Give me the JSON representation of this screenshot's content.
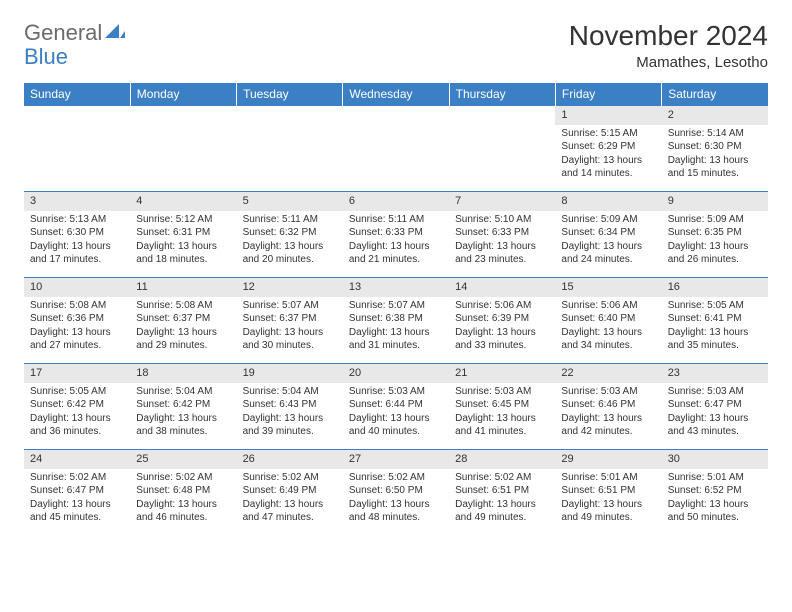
{
  "logo": {
    "text1": "General",
    "text2": "Blue"
  },
  "title": "November 2024",
  "location": "Mamathes, Lesotho",
  "colors": {
    "header_bg": "#3b7fc4",
    "header_text": "#ffffff",
    "daynum_bg": "#e8e8e8",
    "row_border": "#3b7fc4",
    "body_text": "#333333",
    "logo_gray": "#6b6b6b",
    "logo_blue": "#3b7fc4",
    "page_bg": "#ffffff"
  },
  "typography": {
    "title_fontsize": 28,
    "location_fontsize": 15,
    "weekday_fontsize": 12,
    "daynum_fontsize": 11,
    "cell_fontsize": 10
  },
  "weekdays": [
    "Sunday",
    "Monday",
    "Tuesday",
    "Wednesday",
    "Thursday",
    "Friday",
    "Saturday"
  ],
  "weeks": [
    [
      {
        "day": "",
        "lines": [
          "",
          "",
          "",
          ""
        ]
      },
      {
        "day": "",
        "lines": [
          "",
          "",
          "",
          ""
        ]
      },
      {
        "day": "",
        "lines": [
          "",
          "",
          "",
          ""
        ]
      },
      {
        "day": "",
        "lines": [
          "",
          "",
          "",
          ""
        ]
      },
      {
        "day": "",
        "lines": [
          "",
          "",
          "",
          ""
        ]
      },
      {
        "day": "1",
        "lines": [
          "Sunrise: 5:15 AM",
          "Sunset: 6:29 PM",
          "Daylight: 13 hours",
          "and 14 minutes."
        ]
      },
      {
        "day": "2",
        "lines": [
          "Sunrise: 5:14 AM",
          "Sunset: 6:30 PM",
          "Daylight: 13 hours",
          "and 15 minutes."
        ]
      }
    ],
    [
      {
        "day": "3",
        "lines": [
          "Sunrise: 5:13 AM",
          "Sunset: 6:30 PM",
          "Daylight: 13 hours",
          "and 17 minutes."
        ]
      },
      {
        "day": "4",
        "lines": [
          "Sunrise: 5:12 AM",
          "Sunset: 6:31 PM",
          "Daylight: 13 hours",
          "and 18 minutes."
        ]
      },
      {
        "day": "5",
        "lines": [
          "Sunrise: 5:11 AM",
          "Sunset: 6:32 PM",
          "Daylight: 13 hours",
          "and 20 minutes."
        ]
      },
      {
        "day": "6",
        "lines": [
          "Sunrise: 5:11 AM",
          "Sunset: 6:33 PM",
          "Daylight: 13 hours",
          "and 21 minutes."
        ]
      },
      {
        "day": "7",
        "lines": [
          "Sunrise: 5:10 AM",
          "Sunset: 6:33 PM",
          "Daylight: 13 hours",
          "and 23 minutes."
        ]
      },
      {
        "day": "8",
        "lines": [
          "Sunrise: 5:09 AM",
          "Sunset: 6:34 PM",
          "Daylight: 13 hours",
          "and 24 minutes."
        ]
      },
      {
        "day": "9",
        "lines": [
          "Sunrise: 5:09 AM",
          "Sunset: 6:35 PM",
          "Daylight: 13 hours",
          "and 26 minutes."
        ]
      }
    ],
    [
      {
        "day": "10",
        "lines": [
          "Sunrise: 5:08 AM",
          "Sunset: 6:36 PM",
          "Daylight: 13 hours",
          "and 27 minutes."
        ]
      },
      {
        "day": "11",
        "lines": [
          "Sunrise: 5:08 AM",
          "Sunset: 6:37 PM",
          "Daylight: 13 hours",
          "and 29 minutes."
        ]
      },
      {
        "day": "12",
        "lines": [
          "Sunrise: 5:07 AM",
          "Sunset: 6:37 PM",
          "Daylight: 13 hours",
          "and 30 minutes."
        ]
      },
      {
        "day": "13",
        "lines": [
          "Sunrise: 5:07 AM",
          "Sunset: 6:38 PM",
          "Daylight: 13 hours",
          "and 31 minutes."
        ]
      },
      {
        "day": "14",
        "lines": [
          "Sunrise: 5:06 AM",
          "Sunset: 6:39 PM",
          "Daylight: 13 hours",
          "and 33 minutes."
        ]
      },
      {
        "day": "15",
        "lines": [
          "Sunrise: 5:06 AM",
          "Sunset: 6:40 PM",
          "Daylight: 13 hours",
          "and 34 minutes."
        ]
      },
      {
        "day": "16",
        "lines": [
          "Sunrise: 5:05 AM",
          "Sunset: 6:41 PM",
          "Daylight: 13 hours",
          "and 35 minutes."
        ]
      }
    ],
    [
      {
        "day": "17",
        "lines": [
          "Sunrise: 5:05 AM",
          "Sunset: 6:42 PM",
          "Daylight: 13 hours",
          "and 36 minutes."
        ]
      },
      {
        "day": "18",
        "lines": [
          "Sunrise: 5:04 AM",
          "Sunset: 6:42 PM",
          "Daylight: 13 hours",
          "and 38 minutes."
        ]
      },
      {
        "day": "19",
        "lines": [
          "Sunrise: 5:04 AM",
          "Sunset: 6:43 PM",
          "Daylight: 13 hours",
          "and 39 minutes."
        ]
      },
      {
        "day": "20",
        "lines": [
          "Sunrise: 5:03 AM",
          "Sunset: 6:44 PM",
          "Daylight: 13 hours",
          "and 40 minutes."
        ]
      },
      {
        "day": "21",
        "lines": [
          "Sunrise: 5:03 AM",
          "Sunset: 6:45 PM",
          "Daylight: 13 hours",
          "and 41 minutes."
        ]
      },
      {
        "day": "22",
        "lines": [
          "Sunrise: 5:03 AM",
          "Sunset: 6:46 PM",
          "Daylight: 13 hours",
          "and 42 minutes."
        ]
      },
      {
        "day": "23",
        "lines": [
          "Sunrise: 5:03 AM",
          "Sunset: 6:47 PM",
          "Daylight: 13 hours",
          "and 43 minutes."
        ]
      }
    ],
    [
      {
        "day": "24",
        "lines": [
          "Sunrise: 5:02 AM",
          "Sunset: 6:47 PM",
          "Daylight: 13 hours",
          "and 45 minutes."
        ]
      },
      {
        "day": "25",
        "lines": [
          "Sunrise: 5:02 AM",
          "Sunset: 6:48 PM",
          "Daylight: 13 hours",
          "and 46 minutes."
        ]
      },
      {
        "day": "26",
        "lines": [
          "Sunrise: 5:02 AM",
          "Sunset: 6:49 PM",
          "Daylight: 13 hours",
          "and 47 minutes."
        ]
      },
      {
        "day": "27",
        "lines": [
          "Sunrise: 5:02 AM",
          "Sunset: 6:50 PM",
          "Daylight: 13 hours",
          "and 48 minutes."
        ]
      },
      {
        "day": "28",
        "lines": [
          "Sunrise: 5:02 AM",
          "Sunset: 6:51 PM",
          "Daylight: 13 hours",
          "and 49 minutes."
        ]
      },
      {
        "day": "29",
        "lines": [
          "Sunrise: 5:01 AM",
          "Sunset: 6:51 PM",
          "Daylight: 13 hours",
          "and 49 minutes."
        ]
      },
      {
        "day": "30",
        "lines": [
          "Sunrise: 5:01 AM",
          "Sunset: 6:52 PM",
          "Daylight: 13 hours",
          "and 50 minutes."
        ]
      }
    ]
  ]
}
